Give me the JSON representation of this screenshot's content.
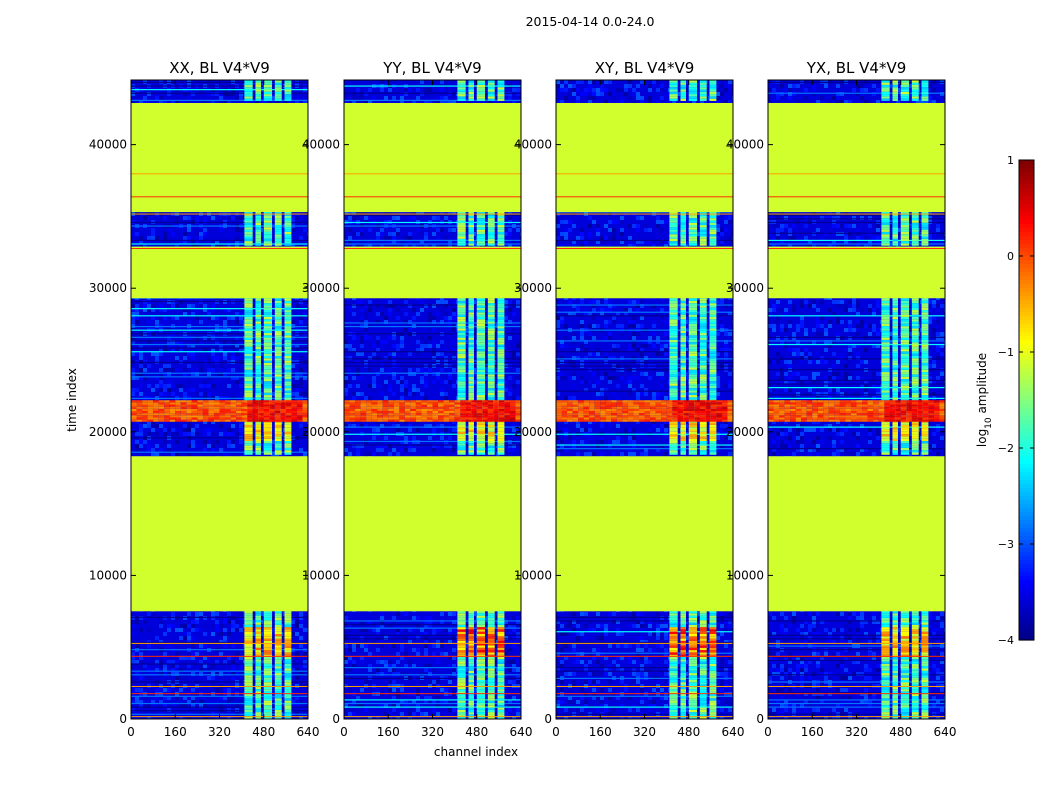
{
  "chart_data": {
    "type": "heatmap",
    "suptitle": "2015-04-14 0.0-24.0",
    "xlabel": "channel index",
    "ylabel": "time index",
    "colorbar": {
      "label": "log10 amplitude",
      "label_prefix": "log",
      "label_sub": "10",
      "label_suffix": " amplitude",
      "colormap": "jet",
      "vmin": -4,
      "vmax": 1,
      "ticks": [
        1,
        0,
        -1,
        -2,
        -3,
        -4
      ],
      "tick_labels": [
        "1",
        "0",
        "−1",
        "−2",
        "−3",
        "−4"
      ]
    },
    "xlim": [
      0,
      640
    ],
    "ylim": [
      0,
      44500
    ],
    "x_ticks": [
      0,
      160,
      320,
      480,
      640
    ],
    "x_tick_labels": [
      "0",
      "160",
      "320",
      "480",
      "640"
    ],
    "y_ticks": [
      0,
      10000,
      20000,
      30000,
      40000
    ],
    "y_tick_labels": [
      "0",
      "10000",
      "20000",
      "30000",
      "40000"
    ],
    "panels": [
      {
        "title": "XX, BL V4*V9",
        "polarization": "XX"
      },
      {
        "title": "YY, BL V4*V9",
        "polarization": "YY"
      },
      {
        "title": "XY, BL V4*V9",
        "polarization": "XY"
      },
      {
        "title": "YX, BL V4*V9",
        "polarization": "YX"
      }
    ],
    "flagged_blocks_time_index": [
      {
        "start": 7500,
        "end": 18300,
        "log10_amplitude": -1.1
      },
      {
        "start": 29300,
        "end": 32900,
        "log10_amplitude": -1.1
      },
      {
        "start": 35300,
        "end": 42900,
        "log10_amplitude": -1.1
      }
    ],
    "rfi_band_channel_index": [
      410,
      600
    ],
    "strong_band_time_index": [
      20700,
      22200
    ]
  }
}
